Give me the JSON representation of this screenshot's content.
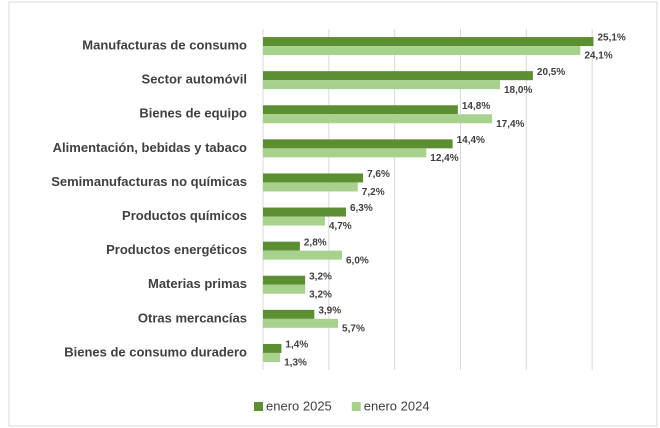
{
  "chart_data": {
    "type": "bar",
    "orientation": "horizontal",
    "categories": [
      "Manufacturas de consumo",
      "Sector automóvil",
      "Bienes de equipo",
      "Alimentación, bebidas y tabaco",
      "Semimanufacturas no químicas",
      "Productos químicos",
      "Productos energéticos",
      "Materias primas",
      "Otras mercancías",
      "Bienes de consumo duradero"
    ],
    "series": [
      {
        "name": "enero 2025",
        "color": "#5b8f32",
        "values": [
          25.1,
          20.5,
          14.8,
          14.4,
          7.6,
          6.3,
          2.8,
          3.2,
          3.9,
          1.4
        ],
        "value_labels": [
          "25,1%",
          "20,5%",
          "14,8%",
          "14,4%",
          "7,6%",
          "6,3%",
          "2,8%",
          "3,2%",
          "3,9%",
          "1,4%"
        ]
      },
      {
        "name": "enero 2024",
        "color": "#a9d18e",
        "values": [
          24.1,
          18.0,
          17.4,
          12.4,
          7.2,
          4.7,
          6.0,
          3.2,
          5.7,
          1.3
        ],
        "value_labels": [
          "24,1%",
          "18,0%",
          "17,4%",
          "12,4%",
          "7,2%",
          "4,7%",
          "6,0%",
          "3,2%",
          "5,7%",
          "1,3%"
        ]
      }
    ],
    "xlim": [
      0,
      30
    ],
    "xticks": [
      0,
      5,
      10,
      15,
      20,
      25
    ],
    "grid": true,
    "legend": "bottom"
  }
}
